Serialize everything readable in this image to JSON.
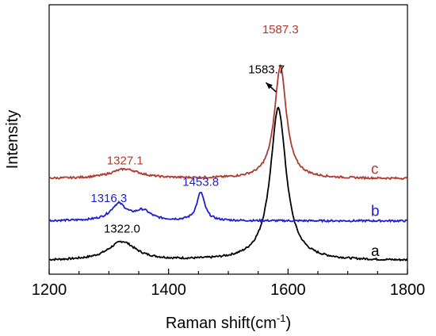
{
  "chart_data": {
    "type": "line",
    "xlabel": "Raman shift(cm",
    "xlabel_sup": "-1",
    "xlabel_close": ")",
    "ylabel": "Intensity",
    "xlim": [
      1200,
      1800
    ],
    "ylim": [
      0,
      1.0
    ],
    "xticks": [
      "1200",
      "1400",
      "1600",
      "1800"
    ],
    "grid": false,
    "series": [
      {
        "name": "a",
        "color": "#000000",
        "baseline": 0.0,
        "peaks": [
          {
            "center": 1322.0,
            "height": 0.08,
            "width": 28
          },
          {
            "center": 1583.7,
            "height": 0.65,
            "width": 16
          }
        ],
        "annotations": [
          {
            "text": "1322.0",
            "x": 1322.0,
            "y": 0.12,
            "color": "#000000"
          },
          {
            "text": "1583.7",
            "x": 1564,
            "y": 0.8,
            "color": "#000000"
          }
        ]
      },
      {
        "name": "b",
        "color": "#1f1fd0",
        "baseline": 0.17,
        "peaks": [
          {
            "center": 1316.3,
            "height": 0.07,
            "width": 16
          },
          {
            "center": 1357,
            "height": 0.04,
            "width": 16
          },
          {
            "center": 1453.8,
            "height": 0.12,
            "width": 8
          }
        ],
        "annotations": [
          {
            "text": "1316.3",
            "x": 1300,
            "y": 0.25,
            "color": "#1f1fd0"
          },
          {
            "text": "1453.8",
            "x": 1453.8,
            "y": 0.32,
            "color": "#1f1fd0"
          }
        ]
      },
      {
        "name": "c",
        "color": "#b03a2e",
        "baseline": 0.35,
        "peaks": [
          {
            "center": 1327.1,
            "height": 0.04,
            "width": 30
          },
          {
            "center": 1587.3,
            "height": 0.48,
            "width": 12
          }
        ],
        "annotations": [
          {
            "text": "1327.1",
            "x": 1327.1,
            "y": 0.41,
            "color": "#b03a2e"
          },
          {
            "text": "1587.3",
            "x": 1587.3,
            "y": 0.97,
            "color": "#b03a2e"
          }
        ]
      }
    ],
    "arrow": {
      "from": [
        1580,
        0.72
      ],
      "to": [
        1563,
        0.76
      ],
      "color": "#000000"
    }
  }
}
